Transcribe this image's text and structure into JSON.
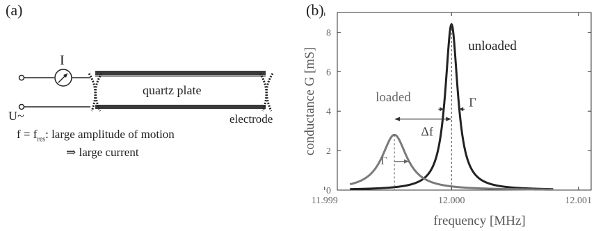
{
  "panel_a": {
    "label": "(a)",
    "current_symbol": "I",
    "voltage_symbol": "U~",
    "plate_label": "quartz plate",
    "electrode_label": "electrode",
    "caption_line1_prefix": "f = f",
    "caption_line1_sub": "res",
    "caption_line1_rest": ": large amplitude of motion",
    "caption_line2": "⇒ large current"
  },
  "panel_b": {
    "label": "(b)",
    "annotations": {
      "unloaded": "unloaded",
      "loaded": "loaded",
      "gamma_unloaded": "Γ",
      "gamma_loaded": "Γ",
      "delta_f": "Δf"
    }
  },
  "chart_data": {
    "type": "line",
    "xlabel": "frequency [MHz]",
    "ylabel": "conductance G [mS]",
    "xlim": [
      11.9991,
      12.0011
    ],
    "ylim": [
      0,
      9
    ],
    "xticks": [
      "11.999",
      "12.000",
      "12.001"
    ],
    "xtick_values": [
      11.999,
      12.0,
      12.001
    ],
    "yticks": [
      "0",
      "2",
      "4",
      "6",
      "8"
    ],
    "ytick_values": [
      0,
      2,
      4,
      6,
      8
    ],
    "grid": false,
    "series": [
      {
        "name": "unloaded",
        "f0": 12.0,
        "peak": 8.4,
        "hwhm": 6e-05,
        "color": "#222222",
        "x": [
          11.9992,
          11.9995,
          11.9997,
          11.9998,
          11.9999,
          11.99995,
          12.0,
          12.00005,
          12.0001,
          12.0002,
          12.0003,
          12.0005,
          12.0008
        ],
        "y": [
          0.05,
          0.12,
          0.3,
          0.7,
          2.2,
          4.8,
          8.4,
          4.8,
          2.2,
          0.7,
          0.3,
          0.12,
          0.05
        ]
      },
      {
        "name": "loaded",
        "f0": 11.99955,
        "peak": 2.8,
        "hwhm": 0.00012,
        "color": "#7a7a7a",
        "x": [
          11.9992,
          11.9994,
          11.9995,
          11.99955,
          11.9996,
          11.9997,
          11.9999,
          12.0001,
          12.0004,
          12.0008
        ],
        "y": [
          0.3,
          1.0,
          2.2,
          2.8,
          2.6,
          1.4,
          0.6,
          0.3,
          0.13,
          0.06
        ]
      }
    ]
  }
}
